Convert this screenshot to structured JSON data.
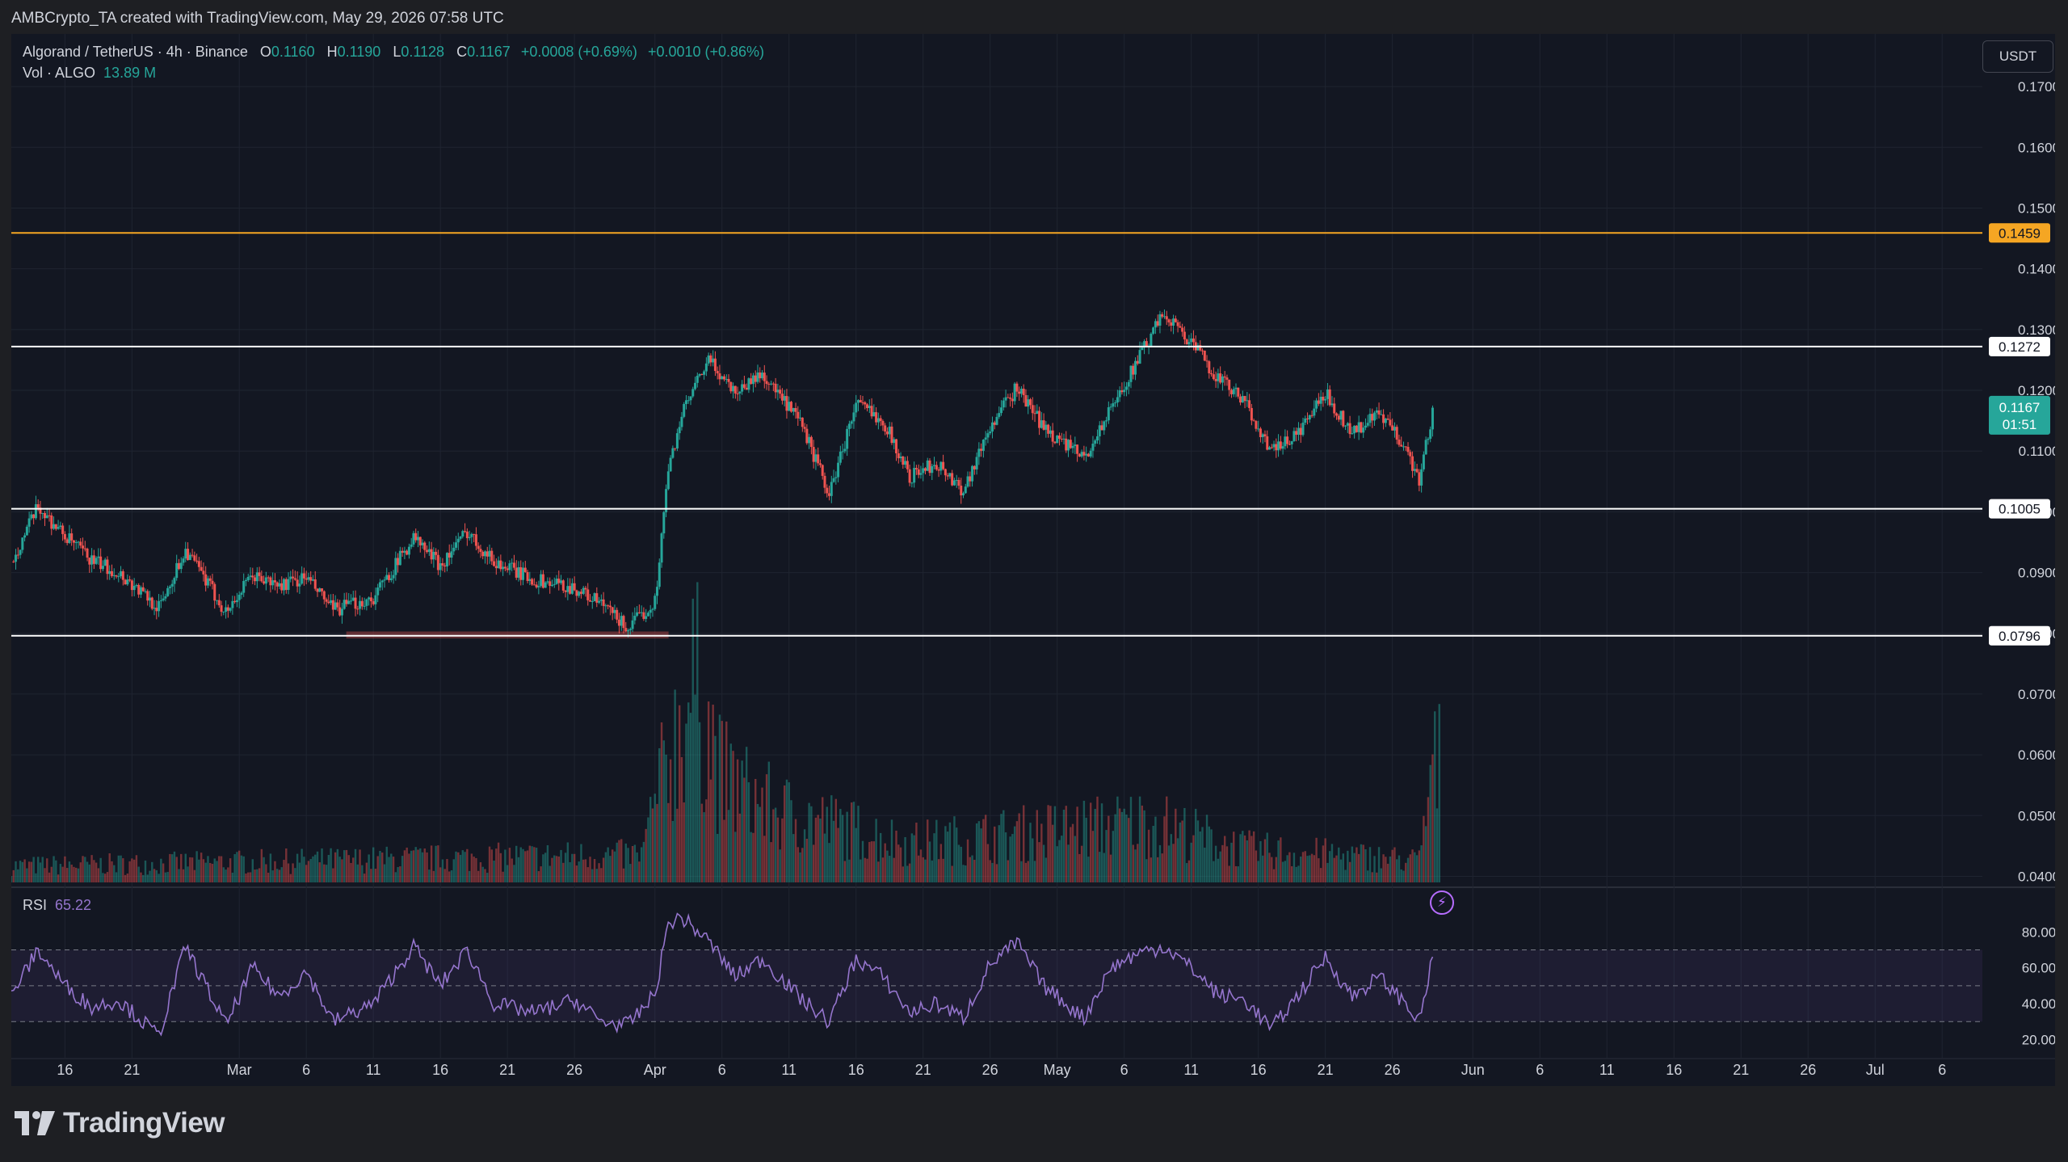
{
  "header": {
    "credit": "AMBCrypto_TA created with TradingView.com, May 29, 2026 07:58 UTC"
  },
  "legend": {
    "symbol": "Algorand / TetherUS · 4h · Binance",
    "open_label": "O",
    "open": "0.1160",
    "high_label": "H",
    "high": "0.1190",
    "low_label": "L",
    "low": "0.1128",
    "close_label": "C",
    "close": "0.1167",
    "change": "+0.0008 (+0.69%)",
    "change2": "+0.0010 (+0.86%)",
    "vol_label": "Vol · ALGO",
    "vol_value": "13.89 M"
  },
  "currency_button": "USDT",
  "rsi": {
    "label": "RSI",
    "value": "65.22"
  },
  "branding": {
    "logo_text": "TradingView",
    "logo_icon": "tradingview-logo-icon",
    "bolt_icon": "lightning-bolt-icon"
  },
  "colors": {
    "bg": "#131722",
    "up": "#26a69a",
    "down": "#ef5350",
    "grid": "#1f2430",
    "axis_text": "#d1d4dc",
    "resistance": "#f5a623",
    "level": "#ffffff",
    "rsi_line": "#9575cd",
    "last_price": "#26a69a"
  },
  "chart_data": [
    {
      "type": "candlestick",
      "title": "Algorand / TetherUS · 4h · Binance",
      "x_range": [
        "2026-02-12",
        "2026-07-09"
      ],
      "ylim": [
        0.039,
        0.176
      ],
      "y_ticks": [
        "0.1700",
        "0.1600",
        "0.1500",
        "0.1400",
        "0.1300",
        "0.1200",
        "0.1100",
        "0.1000",
        "0.0900",
        "0.0800",
        "0.0700",
        "0.0600",
        "0.0500",
        "0.0400"
      ],
      "x_ticks": [
        {
          "date": "2026-02-16",
          "label": "16"
        },
        {
          "date": "2026-02-21",
          "label": "21"
        },
        {
          "date": "2026-03-01",
          "label": "Mar"
        },
        {
          "date": "2026-03-06",
          "label": "6"
        },
        {
          "date": "2026-03-11",
          "label": "11"
        },
        {
          "date": "2026-03-16",
          "label": "16"
        },
        {
          "date": "2026-03-21",
          "label": "21"
        },
        {
          "date": "2026-03-26",
          "label": "26"
        },
        {
          "date": "2026-04-01",
          "label": "Apr"
        },
        {
          "date": "2026-04-06",
          "label": "6"
        },
        {
          "date": "2026-04-11",
          "label": "11"
        },
        {
          "date": "2026-04-16",
          "label": "16"
        },
        {
          "date": "2026-04-21",
          "label": "21"
        },
        {
          "date": "2026-04-26",
          "label": "26"
        },
        {
          "date": "2026-05-01",
          "label": "May"
        },
        {
          "date": "2026-05-06",
          "label": "6"
        },
        {
          "date": "2026-05-11",
          "label": "11"
        },
        {
          "date": "2026-05-16",
          "label": "16"
        },
        {
          "date": "2026-05-21",
          "label": "21"
        },
        {
          "date": "2026-05-26",
          "label": "26"
        },
        {
          "date": "2026-06-01",
          "label": "Jun"
        },
        {
          "date": "2026-06-06",
          "label": "6"
        },
        {
          "date": "2026-06-11",
          "label": "11"
        },
        {
          "date": "2026-06-16",
          "label": "16"
        },
        {
          "date": "2026-06-21",
          "label": "21"
        },
        {
          "date": "2026-06-26",
          "label": "26"
        },
        {
          "date": "2026-07-01",
          "label": "Jul"
        },
        {
          "date": "2026-07-06",
          "label": "6"
        }
      ],
      "grid": true,
      "price_path": [
        [
          "2026-02-12",
          0.0918
        ],
        [
          "2026-02-14",
          0.1008
        ],
        [
          "2026-02-16",
          0.096
        ],
        [
          "2026-02-18",
          0.092
        ],
        [
          "2026-02-20",
          0.09
        ],
        [
          "2026-02-23",
          0.0842
        ],
        [
          "2026-02-25",
          0.0938
        ],
        [
          "2026-02-28",
          0.0835
        ],
        [
          "2026-03-02",
          0.0895
        ],
        [
          "2026-03-04",
          0.0878
        ],
        [
          "2026-03-06",
          0.0892
        ],
        [
          "2026-03-08",
          0.0838
        ],
        [
          "2026-03-11",
          0.0858
        ],
        [
          "2026-03-14",
          0.0958
        ],
        [
          "2026-03-16",
          0.0912
        ],
        [
          "2026-03-18",
          0.0968
        ],
        [
          "2026-03-20",
          0.0918
        ],
        [
          "2026-03-23",
          0.0888
        ],
        [
          "2026-03-26",
          0.0875
        ],
        [
          "2026-03-28",
          0.0848
        ],
        [
          "2026-03-30",
          0.0808
        ],
        [
          "2026-04-01",
          0.0852
        ],
        [
          "2026-04-02",
          0.1068
        ],
        [
          "2026-04-03",
          0.116
        ],
        [
          "2026-04-05",
          0.125
        ],
        [
          "2026-04-07",
          0.1198
        ],
        [
          "2026-04-09",
          0.1228
        ],
        [
          "2026-04-12",
          0.114
        ],
        [
          "2026-04-14",
          0.1028
        ],
        [
          "2026-04-16",
          0.1178
        ],
        [
          "2026-04-18",
          0.1152
        ],
        [
          "2026-04-20",
          0.1058
        ],
        [
          "2026-04-22",
          0.108
        ],
        [
          "2026-04-24",
          0.1035
        ],
        [
          "2026-04-26",
          0.114
        ],
        [
          "2026-04-28",
          0.1205
        ],
        [
          "2026-04-30",
          0.1138
        ],
        [
          "2026-05-03",
          0.1088
        ],
        [
          "2026-05-05",
          0.1168
        ],
        [
          "2026-05-07",
          0.125
        ],
        [
          "2026-05-09",
          0.1328
        ],
        [
          "2026-05-11",
          0.1278
        ],
        [
          "2026-05-13",
          0.122
        ],
        [
          "2026-05-15",
          0.118
        ],
        [
          "2026-05-17",
          0.1098
        ],
        [
          "2026-05-19",
          0.113
        ],
        [
          "2026-05-21",
          0.1195
        ],
        [
          "2026-05-23",
          0.113
        ],
        [
          "2026-05-25",
          0.116
        ],
        [
          "2026-05-27",
          0.1108
        ],
        [
          "2026-05-28",
          0.105
        ],
        [
          "2026-05-29",
          0.1167
        ]
      ],
      "horizontal_levels": [
        {
          "label": "0.1459",
          "value": 0.1459,
          "color": "#f5a623"
        },
        {
          "label": "0.1272",
          "value": 0.1272,
          "color": "#ffffff"
        },
        {
          "label": "0.1005",
          "value": 0.1005,
          "color": "#ffffff"
        },
        {
          "label": "0.0796",
          "value": 0.0796,
          "color": "#ffffff"
        }
      ],
      "support_zone": {
        "from": "2026-03-09",
        "to": "2026-04-02",
        "value": 0.08
      },
      "last_price": {
        "label": "0.1167",
        "countdown": "01:51",
        "value": 0.1167
      },
      "volume_path": [
        [
          "2026-02-12",
          0.042
        ],
        [
          "2026-03-31",
          0.044
        ],
        [
          "2026-04-02",
          0.062
        ],
        [
          "2026-04-04",
          0.075
        ],
        [
          "2026-04-06",
          0.058
        ],
        [
          "2026-04-10",
          0.052
        ],
        [
          "2026-04-20",
          0.046
        ],
        [
          "2026-05-08",
          0.05
        ],
        [
          "2026-05-15",
          0.045
        ],
        [
          "2026-05-28",
          0.043
        ],
        [
          "2026-05-29",
          0.06
        ]
      ]
    },
    {
      "type": "line",
      "title": "RSI",
      "ylim": [
        13,
        95
      ],
      "y_ticks": [
        "80.00",
        "60.00",
        "40.00",
        "20.00"
      ],
      "bands": {
        "upper": 70,
        "middle": 50,
        "lower": 30
      },
      "series": [
        {
          "name": "RSI",
          "points": [
            [
              "2026-02-12",
              45
            ],
            [
              "2026-02-14",
              70
            ],
            [
              "2026-02-16",
              50
            ],
            [
              "2026-02-18",
              38
            ],
            [
              "2026-02-20",
              42
            ],
            [
              "2026-02-23",
              22
            ],
            [
              "2026-02-25",
              72
            ],
            [
              "2026-02-28",
              28
            ],
            [
              "2026-03-02",
              60
            ],
            [
              "2026-03-04",
              44
            ],
            [
              "2026-03-06",
              58
            ],
            [
              "2026-03-08",
              30
            ],
            [
              "2026-03-11",
              40
            ],
            [
              "2026-03-14",
              72
            ],
            [
              "2026-03-16",
              50
            ],
            [
              "2026-03-18",
              70
            ],
            [
              "2026-03-20",
              40
            ],
            [
              "2026-03-23",
              35
            ],
            [
              "2026-03-26",
              42
            ],
            [
              "2026-03-28",
              30
            ],
            [
              "2026-03-30",
              28
            ],
            [
              "2026-04-01",
              45
            ],
            [
              "2026-04-02",
              85
            ],
            [
              "2026-04-03",
              88
            ],
            [
              "2026-04-05",
              75
            ],
            [
              "2026-04-07",
              55
            ],
            [
              "2026-04-09",
              65
            ],
            [
              "2026-04-12",
              42
            ],
            [
              "2026-04-14",
              30
            ],
            [
              "2026-04-16",
              65
            ],
            [
              "2026-04-18",
              55
            ],
            [
              "2026-04-20",
              35
            ],
            [
              "2026-04-22",
              40
            ],
            [
              "2026-04-24",
              32
            ],
            [
              "2026-04-26",
              62
            ],
            [
              "2026-04-28",
              74
            ],
            [
              "2026-04-30",
              50
            ],
            [
              "2026-05-03",
              32
            ],
            [
              "2026-05-05",
              60
            ],
            [
              "2026-05-07",
              68
            ],
            [
              "2026-05-09",
              72
            ],
            [
              "2026-05-11",
              60
            ],
            [
              "2026-05-13",
              45
            ],
            [
              "2026-05-15",
              42
            ],
            [
              "2026-05-17",
              26
            ],
            [
              "2026-05-19",
              45
            ],
            [
              "2026-05-21",
              66
            ],
            [
              "2026-05-23",
              44
            ],
            [
              "2026-05-25",
              55
            ],
            [
              "2026-05-27",
              40
            ],
            [
              "2026-05-28",
              30
            ],
            [
              "2026-05-29",
              65.22
            ]
          ]
        }
      ]
    }
  ]
}
